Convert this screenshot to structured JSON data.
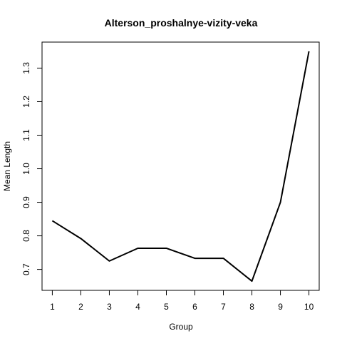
{
  "chart_data": {
    "type": "line",
    "title": "Alterson_proshalnye-vizity-veka",
    "xlabel": "Group",
    "ylabel": "Mean Length",
    "x": [
      1,
      2,
      3,
      4,
      5,
      6,
      7,
      8,
      9,
      10
    ],
    "series": [
      {
        "values": [
          0.845,
          0.792,
          0.725,
          0.763,
          0.763,
          0.733,
          0.733,
          0.665,
          0.9,
          1.35
        ]
      }
    ],
    "xticks": [
      "1",
      "2",
      "3",
      "4",
      "5",
      "6",
      "7",
      "8",
      "9",
      "10"
    ],
    "yticks": [
      "0.7",
      "0.8",
      "0.9",
      "1.0",
      "1.1",
      "1.2",
      "1.3"
    ],
    "xlim": [
      0.64,
      10.36
    ],
    "ylim": [
      0.6375,
      1.3775
    ],
    "grid": false,
    "line_color": "#000000"
  }
}
